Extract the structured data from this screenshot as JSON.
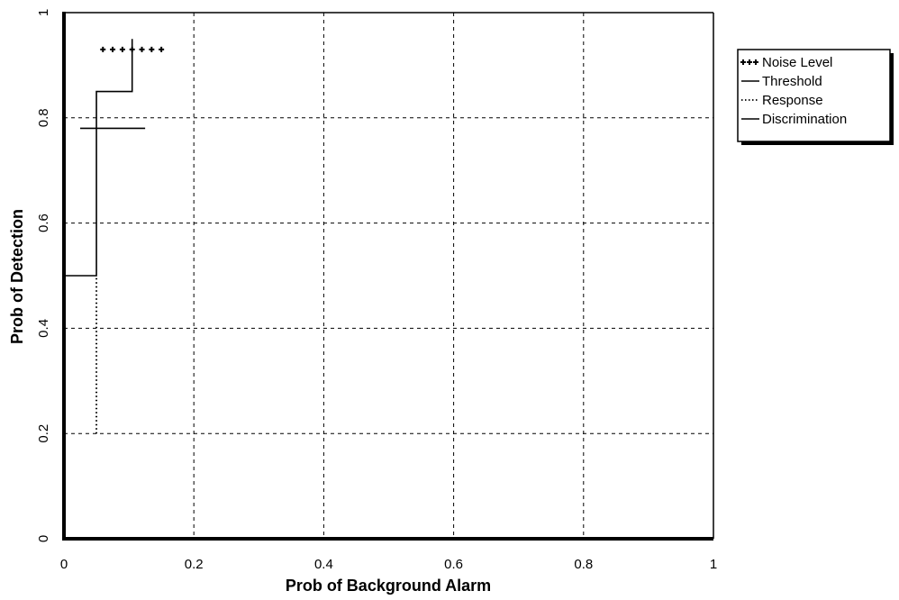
{
  "chart_data": {
    "type": "line",
    "title": "",
    "xlabel": "Prob of Background Alarm",
    "ylabel": "Prob of Detection",
    "xlim": [
      0,
      1
    ],
    "ylim": [
      0,
      1
    ],
    "x_ticks": [
      "0",
      "0.2",
      "0.4",
      "0.6",
      "0.8",
      "1"
    ],
    "y_ticks": [
      "0",
      "0.2",
      "0.4",
      "0.6",
      "0.8",
      "1"
    ],
    "grid": true,
    "grid_style": "dashed",
    "legend_position": "right",
    "series": [
      {
        "name": "Noise Level",
        "style": "plus-markers",
        "color": "#000000",
        "x": [
          0.06,
          0.075,
          0.09,
          0.105,
          0.12,
          0.135,
          0.15
        ],
        "y": [
          0.93,
          0.93,
          0.93,
          0.93,
          0.93,
          0.93,
          0.93
        ]
      },
      {
        "name": "Threshold",
        "style": "solid",
        "color": "#000000",
        "x": [
          0.0,
          0.05,
          0.05,
          0.105,
          0.105
        ],
        "y": [
          0.5,
          0.5,
          0.85,
          0.85,
          0.95
        ]
      },
      {
        "name": "Response",
        "style": "dotted",
        "color": "#000000",
        "x": [
          0.05,
          0.05
        ],
        "y": [
          0.2,
          0.5
        ]
      },
      {
        "name": "Discrimination",
        "style": "solid",
        "color": "#000000",
        "x": [
          0.025,
          0.125
        ],
        "y": [
          0.78,
          0.78
        ]
      }
    ]
  }
}
